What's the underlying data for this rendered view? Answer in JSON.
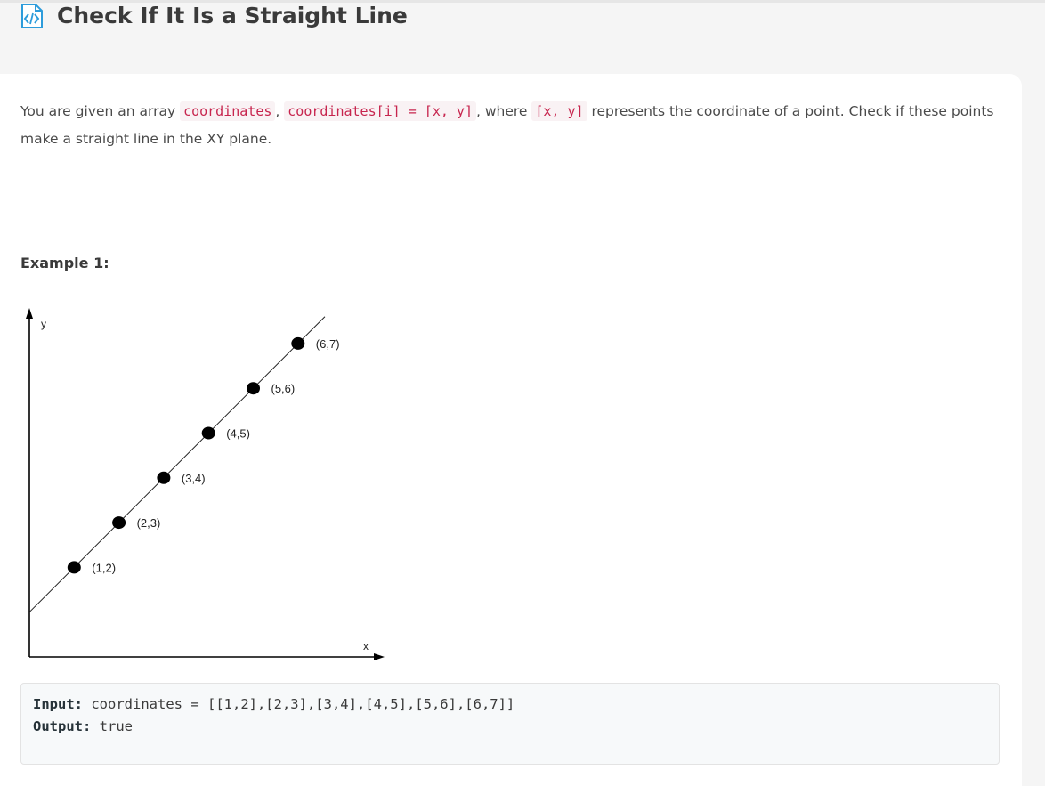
{
  "header": {
    "icon": "code-document-icon",
    "title": "Check If It Is a Straight Line"
  },
  "description": {
    "part1": "You are given an array ",
    "code1": "coordinates",
    "sep1": ", ",
    "code2": "coordinates[i] = [x, y]",
    "part2": ", where ",
    "code3": "[x, y]",
    "part3": " represents the coordinate of a point. Check if these points make a straight line in the XY plane."
  },
  "example": {
    "title": "Example 1:",
    "input_label": "Input:",
    "input_value": "coordinates = [[1,2],[2,3],[3,4],[4,5],[5,6],[6,7]]",
    "output_label": "Output:",
    "output_value": "true"
  },
  "chart_data": {
    "type": "scatter",
    "xlabel": "x",
    "ylabel": "y",
    "points": [
      {
        "x": 1,
        "y": 2,
        "label": "(1,2)"
      },
      {
        "x": 2,
        "y": 3,
        "label": "(2,3)"
      },
      {
        "x": 3,
        "y": 4,
        "label": "(3,4)"
      },
      {
        "x": 4,
        "y": 5,
        "label": "(4,5)"
      },
      {
        "x": 5,
        "y": 6,
        "label": "(5,6)"
      },
      {
        "x": 6,
        "y": 7,
        "label": "(6,7)"
      }
    ],
    "line": {
      "slope": 1,
      "intercept": 1
    },
    "xlim": [
      0,
      7.8
    ],
    "ylim": [
      0,
      8.2
    ],
    "grid": false
  },
  "colors": {
    "accent_icon": "#2d9cdb",
    "code_text": "#c7254e",
    "code_bg": "#f9f2f4"
  }
}
